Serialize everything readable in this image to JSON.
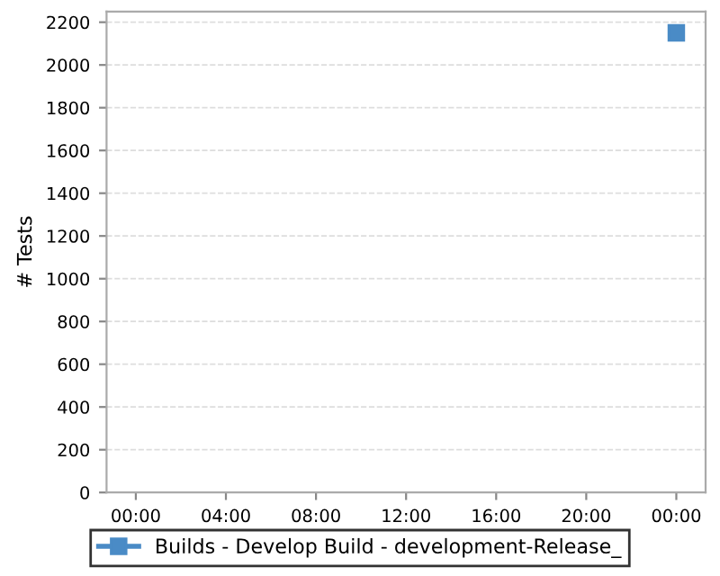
{
  "chart_data": {
    "type": "line",
    "ylabel": "# Tests",
    "x": [
      24
    ],
    "xlim": [
      -1.3,
      25.3
    ],
    "xticks": [
      {
        "value": 0,
        "label": "00:00"
      },
      {
        "value": 4,
        "label": "04:00"
      },
      {
        "value": 8,
        "label": "08:00"
      },
      {
        "value": 12,
        "label": "12:00"
      },
      {
        "value": 16,
        "label": "16:00"
      },
      {
        "value": 20,
        "label": "20:00"
      },
      {
        "value": 24,
        "label": "00:00"
      }
    ],
    "ylim": [
      0,
      2250
    ],
    "yticks": [
      0,
      200,
      400,
      600,
      800,
      1000,
      1200,
      1400,
      1600,
      1800,
      2000,
      2200
    ],
    "series": [
      {
        "name": "Builds - Develop Build - development-Release_",
        "color": "#4a8bc6",
        "values": [
          2150
        ]
      }
    ],
    "grid": "y",
    "legend": "bottom",
    "marker": "square",
    "line_style": "solid"
  }
}
